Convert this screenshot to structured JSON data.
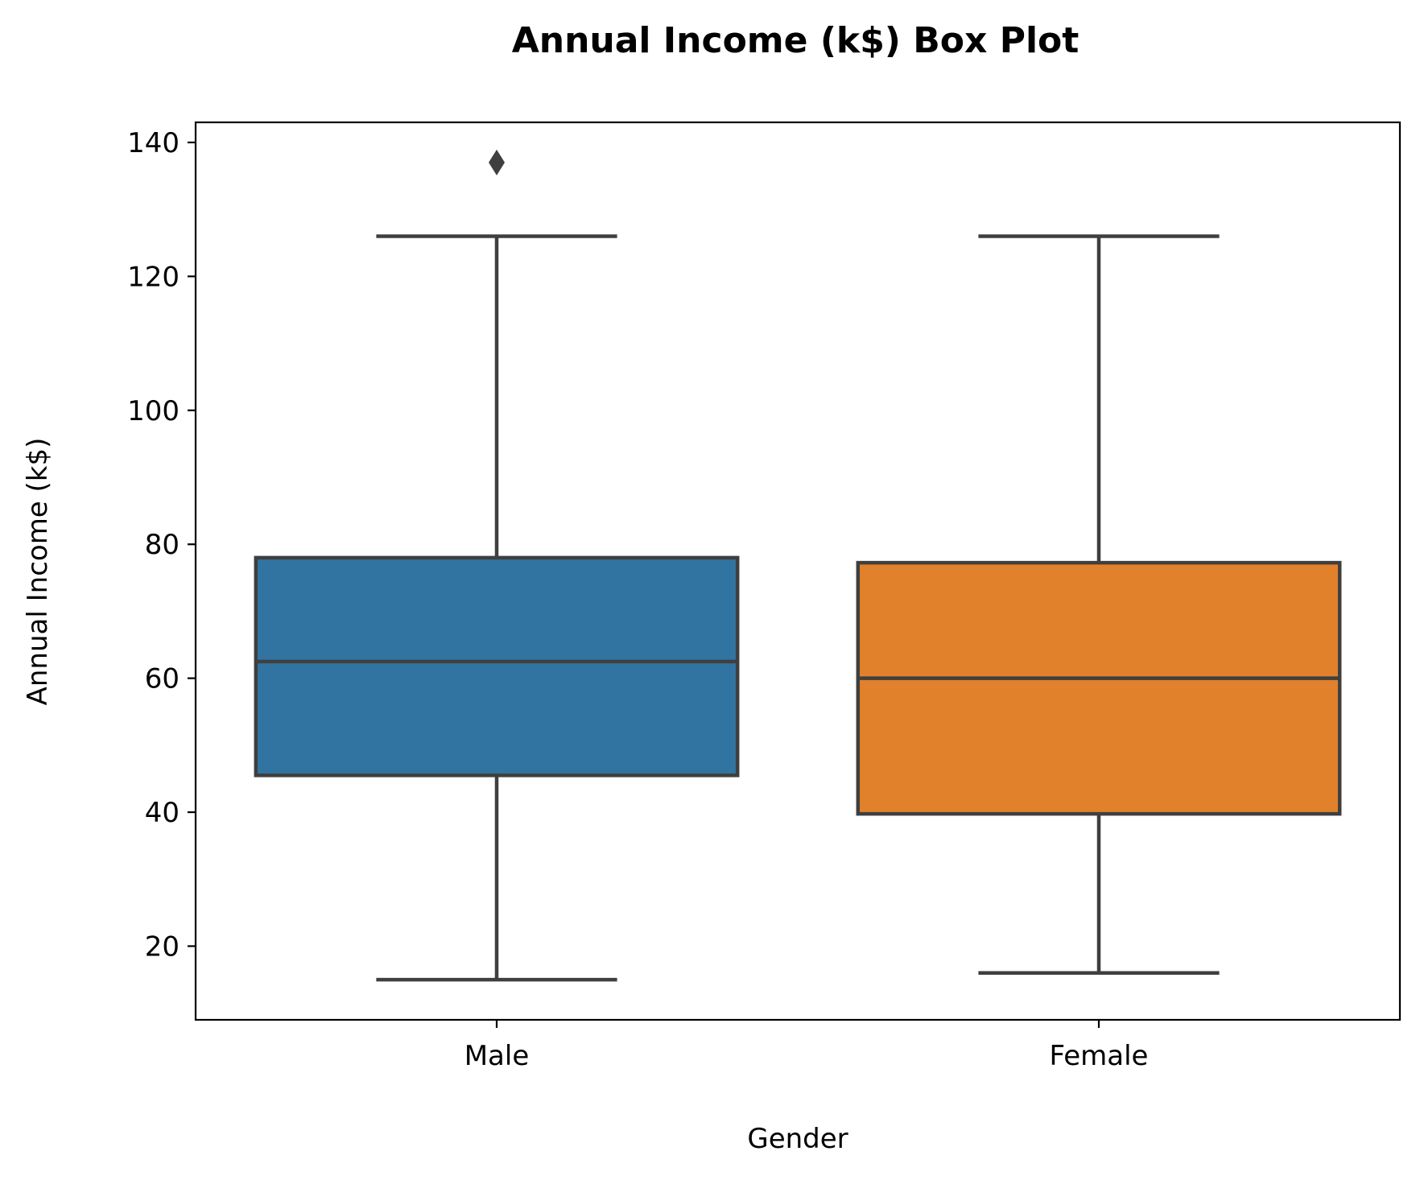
{
  "chart_data": {
    "type": "box",
    "title": "Annual Income (k$) Box Plot",
    "xlabel": "Gender",
    "ylabel": "Annual Income (k$)",
    "ylim": [
      9,
      143
    ],
    "yticks": [
      20,
      40,
      60,
      80,
      100,
      120,
      140
    ],
    "categories": [
      "Male",
      "Female"
    ],
    "boxes": [
      {
        "category": "Male",
        "whisker_low": 15,
        "q1": 45.5,
        "median": 62.5,
        "q3": 78,
        "whisker_high": 126,
        "outliers": [
          137
        ],
        "color": "#3274a1"
      },
      {
        "category": "Female",
        "whisker_low": 16,
        "q1": 39.75,
        "median": 60,
        "q3": 77.25,
        "whisker_high": 126,
        "outliers": [],
        "color": "#e1812c"
      }
    ],
    "grid": false,
    "legend": "none"
  },
  "colors": {
    "line": "#3f3f3f",
    "axes": "#000000"
  }
}
